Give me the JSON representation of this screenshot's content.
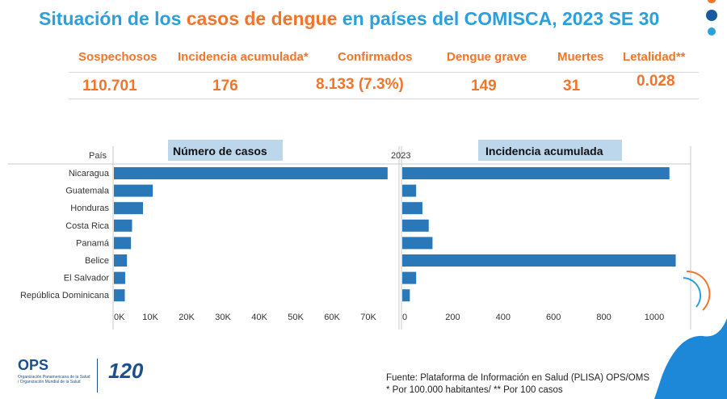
{
  "title": {
    "part1": "Situación de los ",
    "part2": "casos de dengue",
    "part3": " en países del COMISCA, 2023 SE 30"
  },
  "kpis": [
    {
      "label": "Sospechosos",
      "value": "110.701"
    },
    {
      "label": "Incidencia acumulada*",
      "value": "176"
    },
    {
      "label": "Confirmados",
      "value": "8.133 (7.3%)"
    },
    {
      "label": "Dengue grave",
      "value": "149"
    },
    {
      "label": "Muertes",
      "value": "31"
    },
    {
      "label": "Letalidad**",
      "value": "0.028"
    }
  ],
  "chart_headers": {
    "country_col": "País",
    "year": "2023"
  },
  "chart_data": [
    {
      "type": "bar",
      "orientation": "horizontal",
      "title": "Número de casos",
      "categories": [
        "Nicaragua",
        "Guatemala",
        "Honduras",
        "Costa Rica",
        "Panamá",
        "Belice",
        "El Salvador",
        "República Dominicana"
      ],
      "values": [
        75300,
        10700,
        8000,
        5000,
        4700,
        3600,
        3100,
        3000
      ],
      "xticks": [
        "0K",
        "10K",
        "20K",
        "30K",
        "40K",
        "50K",
        "60K",
        "70K"
      ],
      "xlim": [
        0,
        77000
      ],
      "color": "#2a78b8"
    },
    {
      "type": "bar",
      "orientation": "horizontal",
      "title": "Incidencia acumulada",
      "categories": [
        "Nicaragua",
        "Guatemala",
        "Honduras",
        "Costa Rica",
        "Panamá",
        "Belice",
        "El Salvador",
        "República Dominicana"
      ],
      "values": [
        1060,
        55,
        80,
        105,
        120,
        1085,
        55,
        30
      ],
      "xticks": [
        "0",
        "200",
        "400",
        "600",
        "800",
        "1000"
      ],
      "xlim": [
        0,
        1100
      ],
      "color": "#2a78b8"
    }
  ],
  "logos": {
    "ops": "OPS",
    "ops_sub": "Organización Panamericana de la Salud / Organización Mundial de la Salud",
    "anniversary": "120"
  },
  "source": {
    "line1": "Fuente: Plataforma de Información en Salud (PLISA) OPS/OMS",
    "line2": "* Por 100.000 habitantes/ ** Por 100 casos"
  },
  "colors": {
    "blue_title": "#2aa0dc",
    "orange": "#f2752b",
    "bar": "#2a78b8",
    "header_box": "#bcd6ec"
  }
}
